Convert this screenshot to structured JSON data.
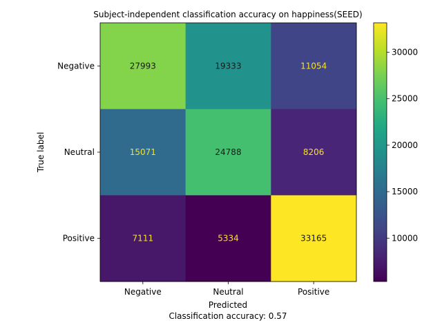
{
  "chart_data": {
    "type": "heatmap",
    "title": "Subject-independent classification accuracy on happiness(SEED)",
    "xlabel": "Predicted",
    "ylabel": "True label",
    "caption": "Classification accuracy: 0.57",
    "x_categories": [
      "Negative",
      "Neutral",
      "Positive"
    ],
    "y_categories": [
      "Negative",
      "Neutral",
      "Positive"
    ],
    "matrix": [
      [
        27993,
        19333,
        11054
      ],
      [
        15071,
        24788,
        8206
      ],
      [
        7111,
        5334,
        33165
      ]
    ],
    "colormap": "viridis",
    "colorbar": {
      "range": [
        5334,
        33165
      ],
      "ticks": [
        10000,
        15000,
        20000,
        25000,
        30000
      ]
    },
    "label_colors": {
      "dark_cells": "#f7e225",
      "light_cells": "#1a1a1a"
    }
  }
}
